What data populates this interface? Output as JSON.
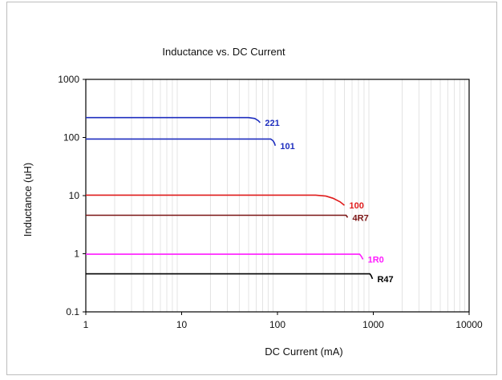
{
  "chart_data": {
    "type": "line",
    "title": "Inductance vs. DC Current",
    "xlabel": "DC Current (mA)",
    "ylabel": "Inductance (uH)",
    "x_scale": "log",
    "y_scale": "log",
    "xlim": [
      1,
      10000
    ],
    "ylim": [
      0.1,
      1000
    ],
    "x_ticks": [
      "1",
      "10",
      "100",
      "1000",
      "10000"
    ],
    "y_ticks": [
      "0.1",
      "1",
      "10",
      "100",
      "1000"
    ],
    "grid": "minor vertical gridlines",
    "series": [
      {
        "name": "221",
        "color": "#1f2fbf",
        "points": [
          [
            1,
            220
          ],
          [
            50,
            220
          ],
          [
            58,
            212
          ],
          [
            63,
            195
          ],
          [
            66,
            180
          ]
        ]
      },
      {
        "name": "101",
        "color": "#1f2fbf",
        "points": [
          [
            1,
            94
          ],
          [
            85,
            94
          ],
          [
            90,
            88
          ],
          [
            93,
            80
          ],
          [
            95,
            72
          ]
        ]
      },
      {
        "name": "100",
        "color": "#e01b1b",
        "points": [
          [
            1,
            10.2
          ],
          [
            250,
            10.2
          ],
          [
            320,
            9.8
          ],
          [
            380,
            9.0
          ],
          [
            450,
            7.8
          ],
          [
            500,
            6.8
          ]
        ]
      },
      {
        "name": "4R7",
        "color": "#7a1414",
        "points": [
          [
            1,
            4.6
          ],
          [
            520,
            4.6
          ],
          [
            540,
            4.2
          ]
        ]
      },
      {
        "name": "1R0",
        "color": "#ff1aff",
        "points": [
          [
            1,
            0.98
          ],
          [
            720,
            0.98
          ],
          [
            750,
            0.9
          ],
          [
            780,
            0.8
          ]
        ]
      },
      {
        "name": "R47",
        "color": "#000000",
        "points": [
          [
            1,
            0.45
          ],
          [
            920,
            0.45
          ],
          [
            950,
            0.42
          ],
          [
            980,
            0.37
          ]
        ]
      }
    ]
  }
}
